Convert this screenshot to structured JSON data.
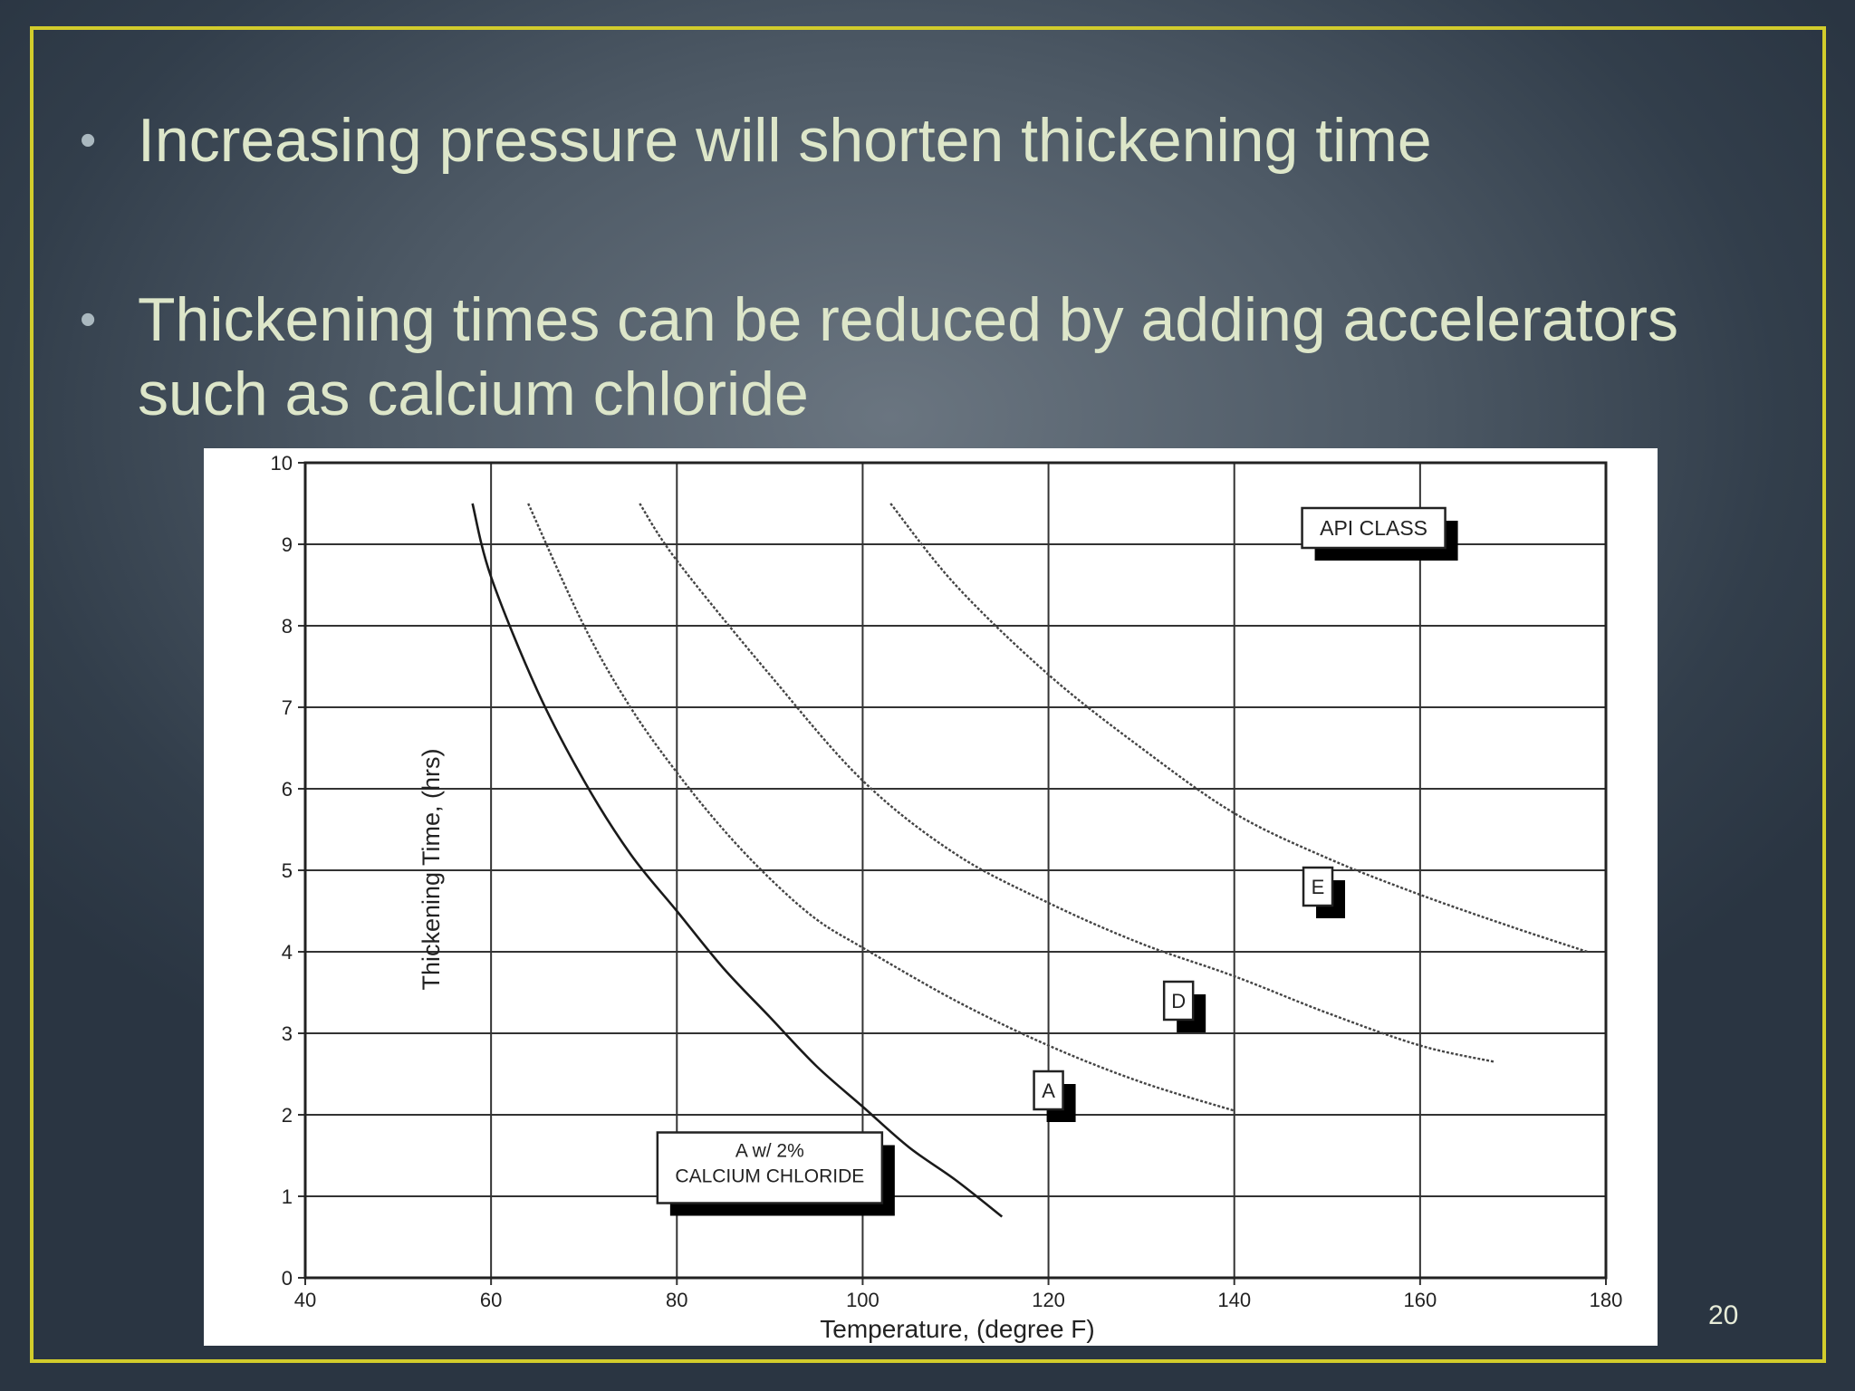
{
  "slide": {
    "bullets": [
      "Increasing pressure will shorten thickening time",
      "Thickening times can be reduced by adding accelerators such as calcium chloride"
    ],
    "bullet_glyph": "•",
    "page_number": "20",
    "accent_color": "#d2cc2c"
  },
  "chart_data": {
    "type": "line",
    "title": "",
    "xlabel": "Temperature, (degree F)",
    "ylabel": "Thickening Time, (hrs)",
    "xlim": [
      40,
      180
    ],
    "ylim": [
      0,
      10
    ],
    "xticks": [
      40,
      60,
      80,
      100,
      120,
      140,
      160,
      180
    ],
    "yticks": [
      0,
      1,
      2,
      3,
      4,
      5,
      6,
      7,
      8,
      9,
      10
    ],
    "grid": true,
    "legend_title": "API CLASS",
    "series": [
      {
        "name": "A w/ 2% CALCIUM CHLORIDE",
        "style": "solid",
        "x": [
          58,
          60,
          65,
          70,
          75,
          80,
          85,
          90,
          95,
          100,
          105,
          110,
          115
        ],
        "y": [
          9.5,
          8.6,
          7.2,
          6.1,
          5.2,
          4.5,
          3.8,
          3.2,
          2.6,
          2.1,
          1.6,
          1.2,
          0.75
        ]
      },
      {
        "name": "A",
        "style": "dotted",
        "x": [
          64,
          70,
          75,
          80,
          85,
          90,
          95,
          100,
          110,
          120,
          130,
          140
        ],
        "y": [
          9.5,
          8.0,
          7.0,
          6.2,
          5.5,
          4.9,
          4.4,
          4.05,
          3.4,
          2.85,
          2.4,
          2.05
        ]
      },
      {
        "name": "D",
        "style": "dotted",
        "x": [
          76,
          80,
          90,
          100,
          110,
          120,
          130,
          140,
          150,
          160,
          168
        ],
        "y": [
          9.5,
          8.8,
          7.4,
          6.1,
          5.2,
          4.6,
          4.1,
          3.7,
          3.25,
          2.85,
          2.65
        ]
      },
      {
        "name": "E",
        "style": "dotted",
        "x": [
          103,
          110,
          120,
          130,
          140,
          150,
          160,
          170,
          178
        ],
        "y": [
          9.5,
          8.5,
          7.4,
          6.5,
          5.7,
          5.15,
          4.7,
          4.3,
          4.0
        ]
      }
    ],
    "annotations": [
      {
        "text": "API CLASS",
        "x": 155,
        "y": 9.2
      },
      {
        "text": "E",
        "x": 149,
        "y": 4.8
      },
      {
        "text": "D",
        "x": 134,
        "y": 3.4
      },
      {
        "text": "A",
        "x": 120,
        "y": 2.3
      },
      {
        "lines": [
          "A w/ 2%",
          "CALCIUM CHLORIDE"
        ],
        "x": 90,
        "y": 1.35
      }
    ]
  }
}
